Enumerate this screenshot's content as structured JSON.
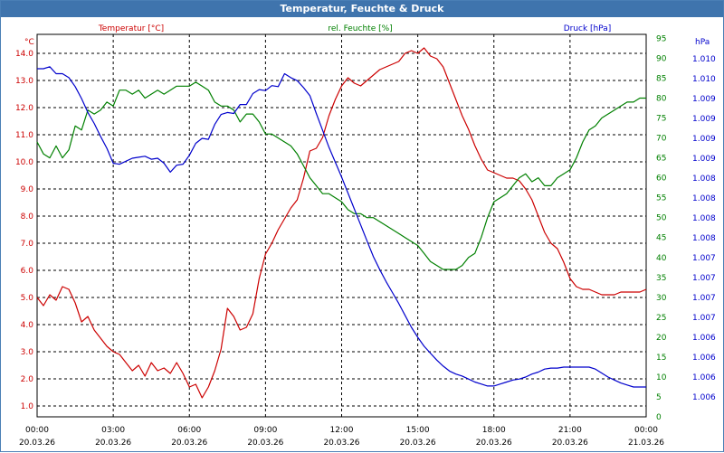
{
  "chart_data": {
    "type": "line",
    "title": "Temperatur, Feuchte & Druck",
    "x_ticks": [
      {
        "time": "00:00",
        "date": "20.03.26"
      },
      {
        "time": "03:00",
        "date": "20.03.26"
      },
      {
        "time": "06:00",
        "date": "20.03.26"
      },
      {
        "time": "09:00",
        "date": "20.03.26"
      },
      {
        "time": "12:00",
        "date": "20.03.26"
      },
      {
        "time": "15:00",
        "date": "20.03.26"
      },
      {
        "time": "18:00",
        "date": "20.03.26"
      },
      {
        "time": "21:00",
        "date": "20.03.26"
      },
      {
        "time": "00:00",
        "date": "21.03.26"
      }
    ],
    "x_range_hours": [
      0,
      24
    ],
    "grid": true,
    "axes": {
      "temperature": {
        "label": "Temperatur [°C]",
        "unit": "°C",
        "color": "#cc0000",
        "side": "left",
        "range": [
          0.6,
          14.7
        ],
        "ticks": [
          "1.0",
          "2.0",
          "3.0",
          "4.0",
          "5.0",
          "6.0",
          "7.0",
          "8.0",
          "9.0",
          "10.0",
          "11.0",
          "12.0",
          "13.0",
          "14.0"
        ]
      },
      "humidity": {
        "label": "rel. Feuchte [%]",
        "unit": "%",
        "color": "#008000",
        "side": "right",
        "range": [
          0,
          96
        ],
        "ticks": [
          "0",
          "5",
          "10",
          "15",
          "20",
          "25",
          "30",
          "35",
          "40",
          "45",
          "50",
          "55",
          "60",
          "65",
          "70",
          "75",
          "80",
          "85",
          "90",
          "95"
        ]
      },
      "pressure": {
        "label": "Druck [hPa]",
        "unit": "hPa",
        "color": "#0000cc",
        "side": "right",
        "ticks": [
          "1.006",
          "1.006",
          "1.006",
          "1.006",
          "1.007",
          "1.007",
          "1.007",
          "1.007",
          "1.008",
          "1.008",
          "1.008",
          "1.008",
          "1.009",
          "1.009",
          "1.009",
          "1.009",
          "1.010",
          "1.010"
        ],
        "plot_range": [
          0,
          34
        ]
      }
    },
    "series": [
      {
        "name": "Temperatur",
        "axis": "temperature",
        "color": "#cc0000",
        "x": [
          0,
          0.25,
          0.5,
          0.75,
          1,
          1.25,
          1.5,
          1.75,
          2,
          2.25,
          2.5,
          2.75,
          3,
          3.25,
          3.5,
          3.75,
          4,
          4.25,
          4.5,
          4.75,
          5,
          5.25,
          5.5,
          5.75,
          6,
          6.25,
          6.5,
          6.75,
          7,
          7.25,
          7.5,
          7.75,
          8,
          8.25,
          8.5,
          8.75,
          9,
          9.25,
          9.5,
          9.75,
          10,
          10.25,
          10.5,
          10.75,
          11,
          11.25,
          11.5,
          11.75,
          12,
          12.25,
          12.5,
          12.75,
          13,
          13.25,
          13.5,
          13.75,
          14,
          14.25,
          14.5,
          14.75,
          15,
          15.25,
          15.5,
          15.75,
          16,
          16.25,
          16.5,
          16.75,
          17,
          17.25,
          17.5,
          17.75,
          18,
          18.25,
          18.5,
          18.75,
          19,
          19.25,
          19.5,
          19.75,
          20,
          20.25,
          20.5,
          20.75,
          21,
          21.25,
          21.5,
          21.75,
          22,
          22.25,
          22.5,
          22.75,
          23,
          23.25,
          23.5,
          23.75,
          24
        ],
        "values": [
          5.0,
          4.7,
          5.1,
          4.9,
          5.4,
          5.3,
          4.8,
          4.1,
          4.3,
          3.8,
          3.5,
          3.2,
          3.0,
          2.9,
          2.6,
          2.3,
          2.5,
          2.1,
          2.6,
          2.3,
          2.4,
          2.2,
          2.6,
          2.2,
          1.7,
          1.8,
          1.3,
          1.7,
          2.3,
          3.1,
          4.6,
          4.3,
          3.8,
          3.9,
          4.4,
          5.7,
          6.6,
          7.0,
          7.5,
          7.9,
          8.3,
          8.6,
          9.4,
          10.4,
          10.5,
          10.9,
          11.7,
          12.3,
          12.8,
          13.1,
          12.9,
          12.8,
          13.0,
          13.2,
          13.4,
          13.5,
          13.6,
          13.7,
          14.0,
          14.1,
          14.0,
          14.2,
          13.9,
          13.8,
          13.5,
          12.9,
          12.3,
          11.7,
          11.2,
          10.6,
          10.1,
          9.7,
          9.6,
          9.5,
          9.4,
          9.4,
          9.3,
          9.0,
          8.6,
          8.0,
          7.4,
          7.0,
          6.8,
          6.3,
          5.7,
          5.4,
          5.3,
          5.3,
          5.2,
          5.1,
          5.1,
          5.1,
          5.2,
          5.2,
          5.2,
          5.2,
          5.3
        ]
      },
      {
        "name": "rel. Feuchte",
        "axis": "humidity",
        "color": "#008000",
        "x": [
          0,
          0.25,
          0.5,
          0.75,
          1,
          1.25,
          1.5,
          1.75,
          2,
          2.25,
          2.5,
          2.75,
          3,
          3.25,
          3.5,
          3.75,
          4,
          4.25,
          4.5,
          4.75,
          5,
          5.25,
          5.5,
          5.75,
          6,
          6.25,
          6.5,
          6.75,
          7,
          7.25,
          7.5,
          7.75,
          8,
          8.25,
          8.5,
          8.75,
          9,
          9.25,
          9.5,
          9.75,
          10,
          10.25,
          10.5,
          10.75,
          11,
          11.25,
          11.5,
          11.75,
          12,
          12.25,
          12.5,
          12.75,
          13,
          13.25,
          13.5,
          13.75,
          14,
          14.25,
          14.5,
          14.75,
          15,
          15.25,
          15.5,
          15.75,
          16,
          16.25,
          16.5,
          16.75,
          17,
          17.25,
          17.5,
          17.75,
          18,
          18.25,
          18.5,
          18.75,
          19,
          19.25,
          19.5,
          19.75,
          20,
          20.25,
          20.5,
          20.75,
          21,
          21.25,
          21.5,
          21.75,
          22,
          22.25,
          22.5,
          22.75,
          23,
          23.25,
          23.5,
          23.75,
          24
        ],
        "values": [
          69,
          66,
          65,
          68,
          65,
          67,
          73,
          72,
          77,
          76,
          77,
          79,
          78,
          82,
          82,
          81,
          82,
          80,
          81,
          82,
          81,
          82,
          83,
          83,
          83,
          84,
          83,
          82,
          79,
          78,
          78,
          77,
          74,
          76,
          76,
          74,
          71,
          71,
          70,
          69,
          68,
          66,
          63,
          60,
          58,
          56,
          56,
          55,
          54,
          52,
          51,
          51,
          50,
          50,
          49,
          48,
          47,
          46,
          45,
          44,
          43,
          41,
          39,
          38,
          37,
          37,
          37,
          38,
          40,
          41,
          45,
          50,
          54,
          55,
          56,
          58,
          60,
          61,
          59,
          60,
          58,
          58,
          60,
          61,
          62,
          65,
          69,
          72,
          73,
          75,
          76,
          77,
          78,
          79,
          79,
          80,
          80
        ]
      },
      {
        "name": "Druck",
        "axis": "pressure",
        "color": "#0000cc",
        "value_units": "axis tick index",
        "x": [
          0,
          0.25,
          0.5,
          0.75,
          1,
          1.25,
          1.5,
          1.75,
          2,
          2.25,
          2.5,
          2.75,
          3,
          3.25,
          3.5,
          3.75,
          4,
          4.25,
          4.5,
          4.75,
          5,
          5.25,
          5.5,
          5.75,
          6,
          6.25,
          6.5,
          6.75,
          7,
          7.25,
          7.5,
          7.75,
          8,
          8.25,
          8.5,
          8.75,
          9,
          9.25,
          9.5,
          9.75,
          10,
          10.25,
          10.5,
          10.75,
          11,
          11.25,
          11.5,
          11.75,
          12,
          12.25,
          12.5,
          12.75,
          13,
          13.25,
          13.5,
          13.75,
          14,
          14.25,
          14.5,
          14.75,
          15,
          15.25,
          15.5,
          15.75,
          16,
          16.25,
          16.5,
          16.75,
          17,
          17.25,
          17.5,
          17.75,
          18,
          18.25,
          18.5,
          18.75,
          19,
          19.25,
          19.5,
          19.75,
          20,
          20.25,
          20.5,
          20.75,
          21,
          21.25,
          21.5,
          21.75,
          22,
          22.25,
          22.5,
          22.75,
          23,
          23.25,
          23.5,
          23.75,
          24
        ],
        "values": [
          33.0,
          33.0,
          33.2,
          32.5,
          32.5,
          32.1,
          31.2,
          30.0,
          28.6,
          27.5,
          26.2,
          25.0,
          23.5,
          23.4,
          23.7,
          24.0,
          24.1,
          24.2,
          23.9,
          24.0,
          23.5,
          22.6,
          23.3,
          23.4,
          24.3,
          25.5,
          26.0,
          25.9,
          27.4,
          28.4,
          28.6,
          28.5,
          29.4,
          29.4,
          30.5,
          30.9,
          30.8,
          31.3,
          31.2,
          32.5,
          32.1,
          31.8,
          31.1,
          30.3,
          28.5,
          26.8,
          25.1,
          23.6,
          22.1,
          20.5,
          18.9,
          17.3,
          15.7,
          14.1,
          12.8,
          11.6,
          10.5,
          9.4,
          8.2,
          7.0,
          6.0,
          5.1,
          4.4,
          3.7,
          3.1,
          2.6,
          2.3,
          2.1,
          1.8,
          1.5,
          1.3,
          1.1,
          1.1,
          1.3,
          1.5,
          1.7,
          1.8,
          2.0,
          2.3,
          2.5,
          2.8,
          2.9,
          2.9,
          3.0,
          3.0,
          3.0,
          3.0,
          3.0,
          2.8,
          2.4,
          2.0,
          1.7,
          1.4,
          1.2,
          1.0,
          1.0,
          1.0
        ]
      }
    ]
  }
}
